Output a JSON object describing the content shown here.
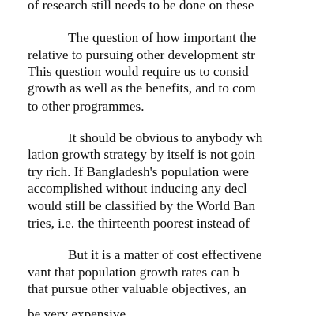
{
  "document": {
    "paragraphs": [
      {
        "lines": [
          "of research still needs to be done on these"
        ]
      },
      {
        "lines": [
          "The question of how important the",
          "relative to pursuing other development str",
          "This question would require us to consid",
          "growth as well as the benefits, and to com",
          "to other programmes."
        ]
      },
      {
        "lines": [
          "It should be obvious to anybody wh",
          "lation growth strategy by itself is not goin",
          "try rich. If Bangladesh's population were",
          "accomplished without inducing any decl",
          "would still be classified by the World Ban",
          "tries, i.e. the thirteenth poorest instead of"
        ]
      },
      {
        "lines": [
          "But it is a matter of cost effectivene",
          "vant that population growth rates can b",
          "that pursue other valuable objectives, an",
          "be very expensive."
        ]
      }
    ]
  }
}
